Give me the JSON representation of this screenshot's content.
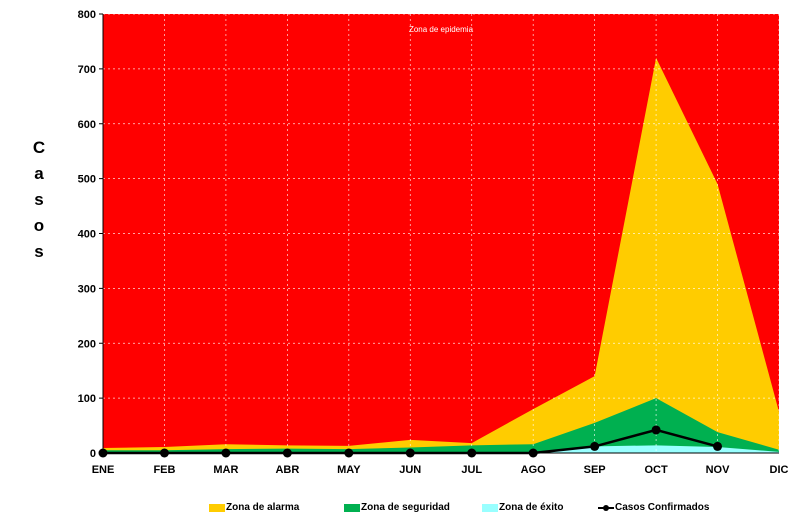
{
  "chart_data": {
    "type": "area",
    "categories": [
      "ENE",
      "FEB",
      "MAR",
      "ABR",
      "MAY",
      "JUN",
      "JUL",
      "AGO",
      "SEP",
      "OCT",
      "NOV",
      "DIC"
    ],
    "ylim": [
      0,
      800
    ],
    "yticks": [
      0,
      100,
      200,
      300,
      400,
      500,
      600,
      700,
      800
    ],
    "ylabel": "Casos",
    "background_zone": {
      "name": "Zona de epidemia",
      "color": "#ff0000"
    },
    "series": [
      {
        "name": "Zona de alarma",
        "type": "area",
        "color": "#ffcc00",
        "values": [
          9,
          11,
          16,
          14,
          13,
          24,
          18,
          80,
          140,
          720,
          490,
          75
        ]
      },
      {
        "name": "Zona de seguridad",
        "type": "area",
        "color": "#00b050",
        "values": [
          5,
          5,
          7,
          8,
          7,
          10,
          14,
          16,
          55,
          100,
          38,
          6
        ]
      },
      {
        "name": "Zona de éxito",
        "type": "area",
        "color": "#99ffff",
        "values": [
          1,
          1,
          1,
          1,
          1,
          1,
          1,
          1,
          12,
          14,
          11,
          2
        ]
      },
      {
        "name": "Casos Confirmados",
        "type": "line",
        "color": "#000000",
        "values": [
          0,
          0,
          0,
          0,
          0,
          0,
          0,
          0,
          12,
          42,
          12,
          null
        ]
      }
    ],
    "grid": true,
    "legend": "bottom"
  }
}
